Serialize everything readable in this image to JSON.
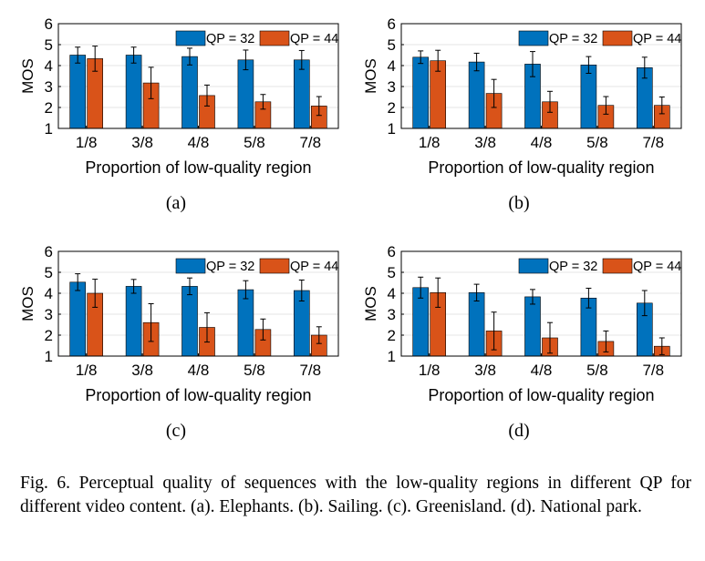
{
  "figure": {
    "caption": "Fig. 6.    Perceptual quality of sequences with the low-quality regions in different QP for different video content. (a). Elephants. (b). Sailing. (c). Greenisland. (d). National park."
  },
  "colors": {
    "qp32": "#0072BD",
    "qp44": "#D95319",
    "grid": "#e6e6e6",
    "axis": "#000000"
  },
  "chart_data": [
    {
      "type": "bar",
      "panel_label": "(a)",
      "categories": [
        "1/8",
        "3/8",
        "4/8",
        "5/8",
        "7/8"
      ],
      "xlabel": "Proportion of low-quality region",
      "ylabel": "MOS",
      "ylim": [
        1,
        6
      ],
      "yticks": [
        1,
        2,
        3,
        4,
        5,
        6
      ],
      "grid": "y",
      "legend_position": "top-right",
      "series": [
        {
          "name": "QP = 32",
          "values": [
            4.5,
            4.5,
            4.43,
            4.27,
            4.27
          ],
          "errors": [
            0.38,
            0.38,
            0.4,
            0.47,
            0.45
          ]
        },
        {
          "name": "QP = 44",
          "values": [
            4.33,
            3.17,
            2.57,
            2.27,
            2.07
          ],
          "errors": [
            0.6,
            0.75,
            0.5,
            0.35,
            0.45
          ]
        }
      ]
    },
    {
      "type": "bar",
      "panel_label": "(b)",
      "categories": [
        "1/8",
        "3/8",
        "4/8",
        "5/8",
        "7/8"
      ],
      "xlabel": "Proportion of low-quality region",
      "ylabel": "MOS",
      "ylim": [
        1,
        6
      ],
      "yticks": [
        1,
        2,
        3,
        4,
        5,
        6
      ],
      "grid": "y",
      "legend_position": "top-right",
      "series": [
        {
          "name": "QP = 32",
          "values": [
            4.4,
            4.17,
            4.07,
            4.03,
            3.9
          ],
          "errors": [
            0.3,
            0.42,
            0.6,
            0.4,
            0.5
          ]
        },
        {
          "name": "QP = 44",
          "values": [
            4.23,
            2.67,
            2.27,
            2.1,
            2.1
          ],
          "errors": [
            0.5,
            0.67,
            0.5,
            0.42,
            0.4
          ]
        }
      ]
    },
    {
      "type": "bar",
      "panel_label": "(c)",
      "categories": [
        "1/8",
        "3/8",
        "4/8",
        "5/8",
        "7/8"
      ],
      "xlabel": "Proportion of low-quality region",
      "ylabel": "MOS",
      "ylim": [
        1,
        6
      ],
      "yticks": [
        1,
        2,
        3,
        4,
        5,
        6
      ],
      "grid": "y",
      "legend_position": "top-right",
      "series": [
        {
          "name": "QP = 32",
          "values": [
            4.53,
            4.33,
            4.33,
            4.17,
            4.13
          ],
          "errors": [
            0.4,
            0.33,
            0.4,
            0.43,
            0.5
          ]
        },
        {
          "name": "QP = 44",
          "values": [
            4.0,
            2.6,
            2.37,
            2.27,
            2.0
          ],
          "errors": [
            0.67,
            0.9,
            0.7,
            0.5,
            0.4
          ]
        }
      ]
    },
    {
      "type": "bar",
      "panel_label": "(d)",
      "categories": [
        "1/8",
        "3/8",
        "4/8",
        "5/8",
        "7/8"
      ],
      "xlabel": "Proportion of low-quality region",
      "ylabel": "MOS",
      "ylim": [
        1,
        6
      ],
      "yticks": [
        1,
        2,
        3,
        4,
        5,
        6
      ],
      "grid": "y",
      "legend_position": "top-right",
      "series": [
        {
          "name": "QP = 32",
          "values": [
            4.27,
            4.03,
            3.83,
            3.77,
            3.53
          ],
          "errors": [
            0.5,
            0.4,
            0.35,
            0.47,
            0.6
          ]
        },
        {
          "name": "QP = 44",
          "values": [
            4.03,
            2.2,
            1.87,
            1.7,
            1.47
          ],
          "errors": [
            0.7,
            0.9,
            0.73,
            0.5,
            0.4
          ]
        }
      ]
    }
  ]
}
